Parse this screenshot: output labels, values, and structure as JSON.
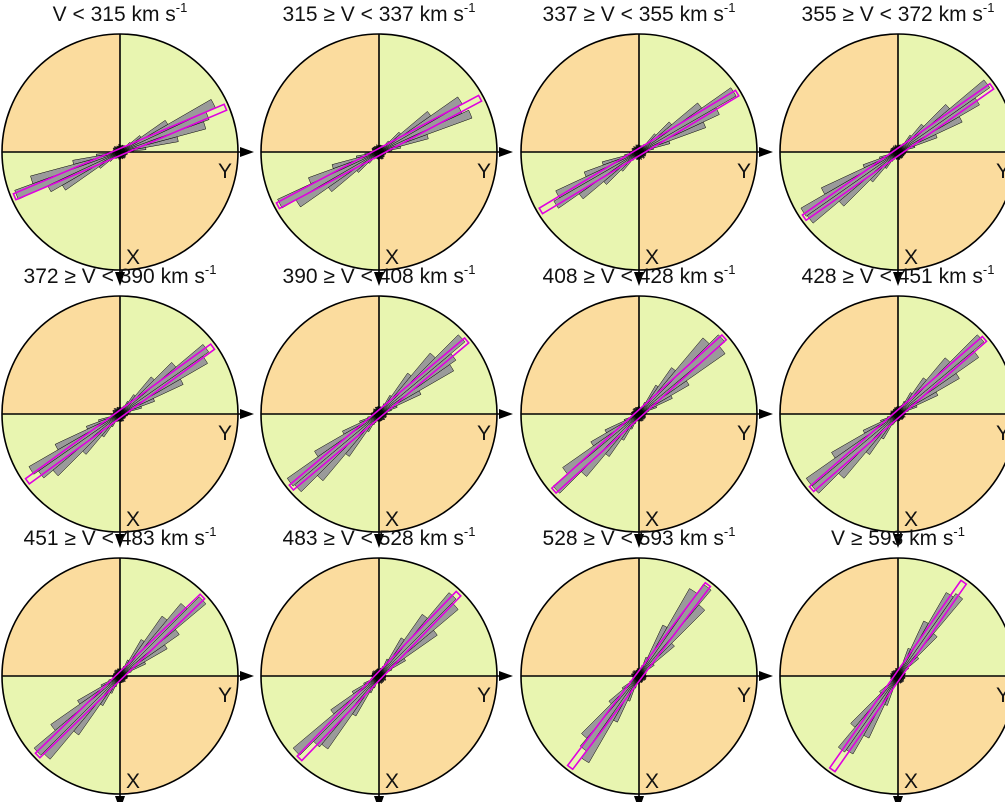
{
  "colors": {
    "quadrant_xy_positive_same_sign": "#e8f5b0",
    "quadrant_xy_opposite_sign": "#fbdc9e",
    "rose_bars": "#9a9a9a",
    "bar_outline": "#000000",
    "mean_direction_box": "#e000e0",
    "axes": "#000000"
  },
  "axis_labels": {
    "x": "X",
    "y": "Y"
  },
  "chart_data": [
    {
      "type": "rose",
      "title_main": "V < 315 km s",
      "title_sup": "-1",
      "peak_angle_deg": 23,
      "spread": 0.42
    },
    {
      "type": "rose",
      "title_main": "315 ≥ V  < 337 km s",
      "title_sup": "-1",
      "peak_angle_deg": 28,
      "spread": 0.42
    },
    {
      "type": "rose",
      "title_main": "337 ≥ V  < 355 km s",
      "title_sup": "-1",
      "peak_angle_deg": 31,
      "spread": 0.42
    },
    {
      "type": "rose",
      "title_main": "355 ≥ V  < 372 km s",
      "title_sup": "-1",
      "peak_angle_deg": 35,
      "spread": 0.43
    },
    {
      "type": "rose",
      "title_main": "372 ≥ V  < 390 km s",
      "title_sup": "-1",
      "peak_angle_deg": 36,
      "spread": 0.45
    },
    {
      "type": "rose",
      "title_main": "390 ≥ V  < 408 km s",
      "title_sup": "-1",
      "peak_angle_deg": 40,
      "spread": 0.45
    },
    {
      "type": "rose",
      "title_main": "408 ≥ V  < 428 km s",
      "title_sup": "-1",
      "peak_angle_deg": 42,
      "spread": 0.45
    },
    {
      "type": "rose",
      "title_main": "428 ≥ V  < 451 km s",
      "title_sup": "-1",
      "peak_angle_deg": 41,
      "spread": 0.45
    },
    {
      "type": "rose",
      "title_main": "451 ≥ V  < 483 km s",
      "title_sup": "-1",
      "peak_angle_deg": 44,
      "spread": 0.44
    },
    {
      "type": "rose",
      "title_main": "483 ≥ V  < 528 km s",
      "title_sup": "-1",
      "peak_angle_deg": 46,
      "spread": 0.42
    },
    {
      "type": "rose",
      "title_main": "528 ≥ V  < 593 km s",
      "title_sup": "-1",
      "peak_angle_deg": 53,
      "spread": 0.38
    },
    {
      "type": "rose",
      "title_main": "V ≥ 593 km s",
      "title_sup": "-1",
      "peak_angle_deg": 55,
      "spread": 0.35
    }
  ]
}
